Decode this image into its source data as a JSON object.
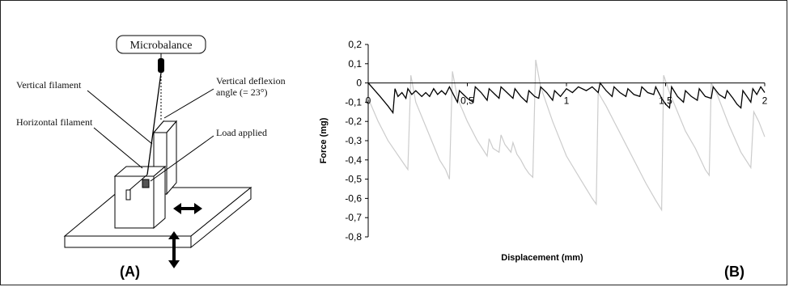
{
  "diagram": {
    "microbalance": "Microbalance",
    "vertical_filament": "Vertical filament",
    "horizontal_filament": "Horizontal filament",
    "deflection_line1": "Vertical deflexion",
    "deflection_line2": "angle (= 23°)",
    "load_applied": "Load applied",
    "panel_label": "(A)"
  },
  "chart_data": {
    "type": "line",
    "panel_label": "(B)",
    "xlabel": "Displacement (mm)",
    "ylabel": "Force (mg)",
    "xlim": [
      0,
      2
    ],
    "ylim": [
      -0.8,
      0.2
    ],
    "x_ticks": [
      "0",
      "0,5",
      "1",
      "1,5",
      "2"
    ],
    "y_ticks": [
      "0,2",
      "0,1",
      "0",
      "-0,1",
      "-0,2",
      "-0,3",
      "-0,4",
      "-0,5",
      "-0,6",
      "-0,7",
      "-0,8"
    ],
    "series": [
      {
        "color": "#cccccc",
        "points": [
          [
            0,
            -0.08
          ],
          [
            0.05,
            -0.2
          ],
          [
            0.1,
            -0.3
          ],
          [
            0.14,
            -0.36
          ],
          [
            0.18,
            -0.42
          ],
          [
            0.2,
            -0.45
          ],
          [
            0.215,
            0.04
          ],
          [
            0.24,
            -0.1
          ],
          [
            0.3,
            -0.25
          ],
          [
            0.36,
            -0.4
          ],
          [
            0.39,
            -0.45
          ],
          [
            0.41,
            -0.5
          ],
          [
            0.425,
            0.06
          ],
          [
            0.45,
            -0.08
          ],
          [
            0.5,
            -0.2
          ],
          [
            0.55,
            -0.3
          ],
          [
            0.6,
            -0.38
          ],
          [
            0.61,
            -0.29
          ],
          [
            0.63,
            -0.34
          ],
          [
            0.66,
            -0.36
          ],
          [
            0.67,
            -0.27
          ],
          [
            0.69,
            -0.32
          ],
          [
            0.72,
            -0.36
          ],
          [
            0.73,
            -0.31
          ],
          [
            0.75,
            -0.37
          ],
          [
            0.77,
            -0.4
          ],
          [
            0.79,
            -0.44
          ],
          [
            0.81,
            -0.47
          ],
          [
            0.83,
            -0.49
          ],
          [
            0.845,
            0.12
          ],
          [
            0.87,
            -0.02
          ],
          [
            0.93,
            -0.2
          ],
          [
            1.0,
            -0.38
          ],
          [
            1.07,
            -0.5
          ],
          [
            1.13,
            -0.6
          ],
          [
            1.15,
            -0.63
          ],
          [
            1.16,
            -0.05
          ],
          [
            1.2,
            -0.12
          ],
          [
            1.3,
            -0.32
          ],
          [
            1.4,
            -0.52
          ],
          [
            1.45,
            -0.61
          ],
          [
            1.48,
            -0.66
          ],
          [
            1.49,
            0.04
          ],
          [
            1.52,
            -0.05
          ],
          [
            1.6,
            -0.25
          ],
          [
            1.65,
            -0.34
          ],
          [
            1.7,
            -0.45
          ],
          [
            1.72,
            -0.48
          ],
          [
            1.73,
            0.0
          ],
          [
            1.76,
            -0.06
          ],
          [
            1.82,
            -0.22
          ],
          [
            1.88,
            -0.36
          ],
          [
            1.93,
            -0.44
          ],
          [
            1.945,
            -0.15
          ],
          [
            1.97,
            -0.2
          ],
          [
            2.0,
            -0.28
          ]
        ]
      },
      {
        "color": "#000000",
        "points": [
          [
            0,
            0
          ],
          [
            0.06,
            -0.07
          ],
          [
            0.1,
            -0.12
          ],
          [
            0.125,
            -0.155
          ],
          [
            0.135,
            -0.03
          ],
          [
            0.15,
            -0.07
          ],
          [
            0.17,
            -0.05
          ],
          [
            0.19,
            -0.08
          ],
          [
            0.2,
            -0.03
          ],
          [
            0.22,
            -0.06
          ],
          [
            0.24,
            -0.04
          ],
          [
            0.27,
            -0.07
          ],
          [
            0.29,
            -0.05
          ],
          [
            0.31,
            -0.07
          ],
          [
            0.33,
            -0.03
          ],
          [
            0.35,
            -0.06
          ],
          [
            0.37,
            -0.04
          ],
          [
            0.39,
            -0.06
          ],
          [
            0.41,
            -0.02
          ],
          [
            0.43,
            -0.06
          ],
          [
            0.45,
            -0.1
          ],
          [
            0.46,
            -0.04
          ],
          [
            0.5,
            -0.08
          ],
          [
            0.53,
            -0.1
          ],
          [
            0.54,
            -0.02
          ],
          [
            0.57,
            -0.05
          ],
          [
            0.6,
            -0.09
          ],
          [
            0.61,
            -0.03
          ],
          [
            0.64,
            -0.06
          ],
          [
            0.66,
            -0.08
          ],
          [
            0.67,
            -0.02
          ],
          [
            0.7,
            -0.05
          ],
          [
            0.73,
            -0.08
          ],
          [
            0.74,
            -0.03
          ],
          [
            0.77,
            -0.07
          ],
          [
            0.8,
            -0.1
          ],
          [
            0.81,
            -0.04
          ],
          [
            0.84,
            -0.07
          ],
          [
            0.86,
            -0.08
          ],
          [
            0.87,
            -0.02
          ],
          [
            0.9,
            -0.05
          ],
          [
            0.93,
            -0.09
          ],
          [
            0.94,
            -0.04
          ],
          [
            0.97,
            -0.07
          ],
          [
            1.0,
            -0.03
          ],
          [
            1.03,
            -0.05
          ],
          [
            1.06,
            -0.02
          ],
          [
            1.1,
            -0.04
          ],
          [
            1.13,
            -0.02
          ],
          [
            1.16,
            -0.05
          ],
          [
            1.17,
            0.0
          ],
          [
            1.2,
            -0.04
          ],
          [
            1.23,
            -0.07
          ],
          [
            1.24,
            -0.02
          ],
          [
            1.27,
            -0.05
          ],
          [
            1.3,
            -0.07
          ],
          [
            1.31,
            -0.03
          ],
          [
            1.34,
            -0.06
          ],
          [
            1.37,
            -0.07
          ],
          [
            1.38,
            -0.02
          ],
          [
            1.41,
            -0.05
          ],
          [
            1.44,
            -0.06
          ],
          [
            1.45,
            -0.02
          ],
          [
            1.48,
            -0.08
          ],
          [
            1.5,
            -0.11
          ],
          [
            1.52,
            -0.13
          ],
          [
            1.53,
            -0.02
          ],
          [
            1.56,
            -0.07
          ],
          [
            1.59,
            -0.1
          ],
          [
            1.6,
            -0.04
          ],
          [
            1.63,
            -0.07
          ],
          [
            1.66,
            -0.09
          ],
          [
            1.67,
            -0.03
          ],
          [
            1.7,
            -0.07
          ],
          [
            1.73,
            -0.08
          ],
          [
            1.74,
            -0.02
          ],
          [
            1.77,
            -0.06
          ],
          [
            1.8,
            -0.08
          ],
          [
            1.81,
            -0.04
          ],
          [
            1.84,
            -0.08
          ],
          [
            1.86,
            -0.11
          ],
          [
            1.88,
            -0.13
          ],
          [
            1.89,
            -0.04
          ],
          [
            1.91,
            -0.07
          ],
          [
            1.93,
            -0.1
          ],
          [
            1.94,
            -0.03
          ],
          [
            1.96,
            -0.06
          ],
          [
            1.98,
            -0.02
          ],
          [
            2.0,
            -0.05
          ]
        ]
      }
    ]
  }
}
